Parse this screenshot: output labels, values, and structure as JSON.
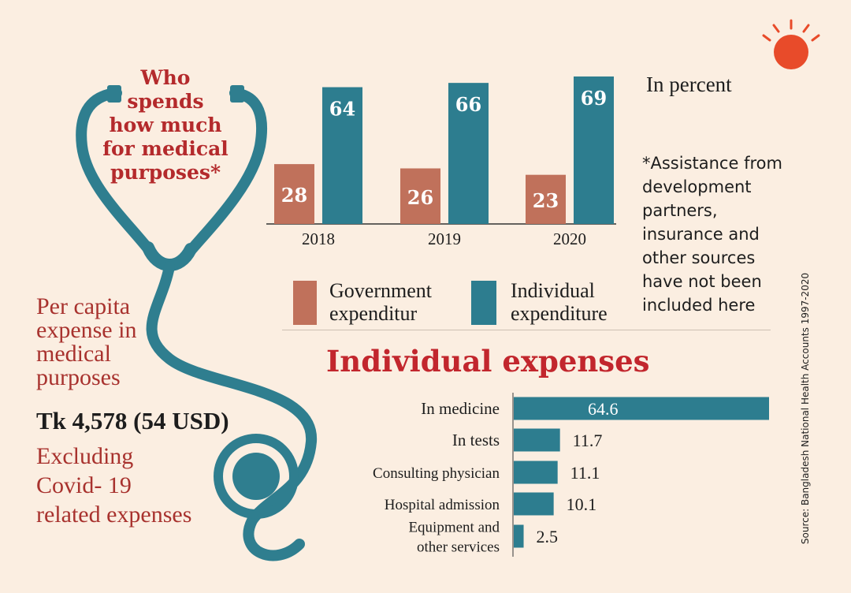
{
  "title_lines": [
    "Who",
    "spends",
    "how much",
    "for medical",
    "purposes*"
  ],
  "per_capita": {
    "label_lines": [
      "Per capita",
      "expense in",
      "medical",
      "purposes"
    ],
    "amount": "Tk 4,578 (54 USD)",
    "note_lines": [
      "Excluding",
      "Covid-  19",
      "related expenses"
    ]
  },
  "unit_label": "In percent",
  "footnote_lines": [
    "*Assistance from",
    "development",
    "partners,",
    "insurance and",
    "other sources",
    "have not been",
    "included here"
  ],
  "legend": {
    "government_lines": [
      "Government",
      "expenditur"
    ],
    "individual_lines": [
      "Individual",
      "expenditure"
    ]
  },
  "section_title": "Individual expenses",
  "source": "Source: Bangladesh National Health Accounts 1997-2020",
  "colors": {
    "background": "#fbeee1",
    "government": "#c0715b",
    "individual": "#2d7d8f",
    "title_red": "#b42a2c",
    "logo": "#e84b2a",
    "stethoscope": "#2f7e8f"
  },
  "chart_data": [
    {
      "type": "bar",
      "title": "Who spends how much for medical purposes*",
      "ylabel": "In percent",
      "categories": [
        "2018",
        "2019",
        "2020"
      ],
      "series": [
        {
          "name": "Government expenditur",
          "values": [
            28,
            26,
            23
          ]
        },
        {
          "name": "Individual expenditure",
          "values": [
            64,
            66,
            69
          ]
        }
      ],
      "ylim": [
        0,
        69
      ],
      "legend": "bottom"
    },
    {
      "type": "bar",
      "orientation": "horizontal",
      "title": "Individual expenses",
      "categories": [
        "In medicine",
        "In tests",
        "Consulting physician",
        "Hospital admission",
        "Equipment and other services"
      ],
      "category_lines": [
        [
          "In medicine"
        ],
        [
          "In tests"
        ],
        [
          "Consulting physician"
        ],
        [
          "Hospital admission"
        ],
        [
          "Equipment and",
          "other services"
        ]
      ],
      "values": [
        64.6,
        11.7,
        11.1,
        10.1,
        2.5
      ],
      "value_labels": [
        "64.6",
        "11.7",
        "11.1",
        "10.1",
        "2.5"
      ],
      "xlim": [
        0,
        64.6
      ]
    }
  ]
}
